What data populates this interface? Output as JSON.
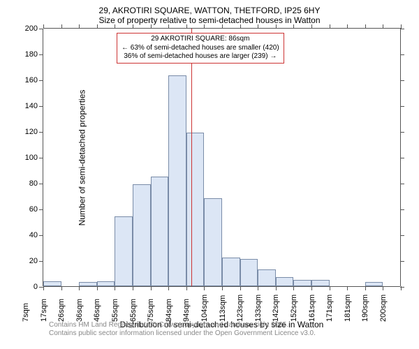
{
  "chart": {
    "type": "histogram",
    "title_line1": "29, AKROTIRI SQUARE, WATTON, THETFORD, IP25 6HY",
    "title_line2": "Size of property relative to semi-detached houses in Watton",
    "x_label": "Distribution of semi-detached houses by size in Watton",
    "y_label": "Number of semi-detached properties",
    "ylim": [
      0,
      200
    ],
    "y_ticks": [
      0,
      20,
      40,
      60,
      80,
      100,
      120,
      140,
      160,
      180,
      200
    ],
    "x_ticks": [
      "7sqm",
      "17sqm",
      "26sqm",
      "36sqm",
      "46sqm",
      "55sqm",
      "65sqm",
      "75sqm",
      "84sqm",
      "94sqm",
      "104sqm",
      "113sqm",
      "123sqm",
      "133sqm",
      "142sqm",
      "152sqm",
      "161sqm",
      "171sqm",
      "181sqm",
      "190sqm",
      "200sqm"
    ],
    "bars": [
      {
        "x_index": 0,
        "value": 4
      },
      {
        "x_index": 2,
        "value": 3
      },
      {
        "x_index": 3,
        "value": 4
      },
      {
        "x_index": 4,
        "value": 54
      },
      {
        "x_index": 5,
        "value": 79
      },
      {
        "x_index": 6,
        "value": 85
      },
      {
        "x_index": 7,
        "value": 163
      },
      {
        "x_index": 8,
        "value": 119
      },
      {
        "x_index": 9,
        "value": 68
      },
      {
        "x_index": 10,
        "value": 22
      },
      {
        "x_index": 11,
        "value": 21
      },
      {
        "x_index": 12,
        "value": 13
      },
      {
        "x_index": 13,
        "value": 7
      },
      {
        "x_index": 14,
        "value": 5
      },
      {
        "x_index": 15,
        "value": 5
      },
      {
        "x_index": 18,
        "value": 3
      }
    ],
    "bar_fill": "#dce6f5",
    "bar_stroke": "#7a8ca8",
    "background_color": "#ffffff",
    "axis_color": "#555555",
    "marker_color": "#cc3333",
    "marker_x_ratio": 0.415,
    "annotation": {
      "line1": "29 AKROTIRI SQUARE: 86sqm",
      "line2": "← 63% of semi-detached houses are smaller (420)",
      "line3": "36% of semi-detached houses are larger (239) →",
      "fontsize": 10
    },
    "footer_line1": "Contains HM Land Registry data © Crown copyright and database right 2025.",
    "footer_line2": "Contains public sector information licensed under the Open Government Licence v3.0.",
    "title_fontsize": 12,
    "label_fontsize": 12,
    "tick_fontsize": 11
  }
}
